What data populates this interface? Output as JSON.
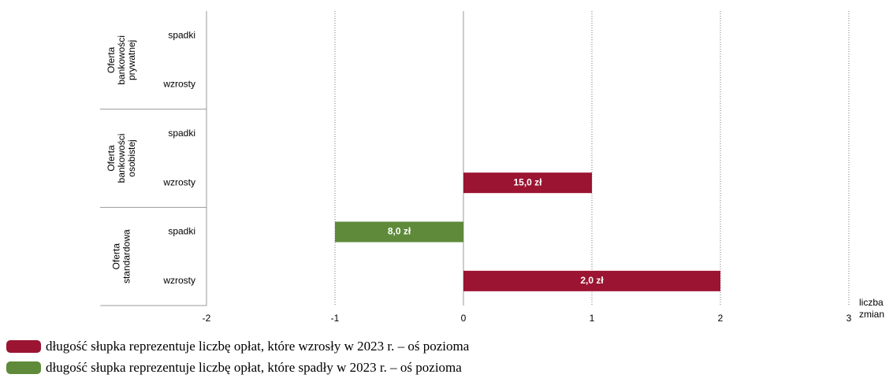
{
  "chart_data": {
    "type": "bar",
    "orientation": "horizontal",
    "groups": [
      "Oferta bankowości prywatnej",
      "Oferta bankowości osobistej",
      "Oferta standardowa"
    ],
    "categories": [
      "spadki",
      "wzrosty",
      "spadki",
      "wzrosty",
      "spadki",
      "wzrosty"
    ],
    "series": [
      {
        "name": "długość słupka reprezentuje liczbę opłat, które wzrosły w 2023 r. – oś pozioma",
        "color": "#9b1432",
        "values": [
          null,
          null,
          null,
          1,
          null,
          2
        ],
        "annotations": [
          null,
          null,
          null,
          "15,0 zł",
          null,
          "2,0 zł"
        ]
      },
      {
        "name": "długość słupka reprezentuje liczbę opłat, które spadły w 2023 r. – oś pozioma",
        "color": "#5e8a3a",
        "values": [
          null,
          null,
          null,
          null,
          -1,
          null
        ],
        "annotations": [
          null,
          null,
          null,
          null,
          "8,0 zł",
          null
        ]
      }
    ],
    "xlim": [
      -2,
      3
    ],
    "xticks": [
      -2,
      -1,
      0,
      1,
      2,
      3
    ],
    "xlabel": "liczba zmian",
    "grid": true
  }
}
